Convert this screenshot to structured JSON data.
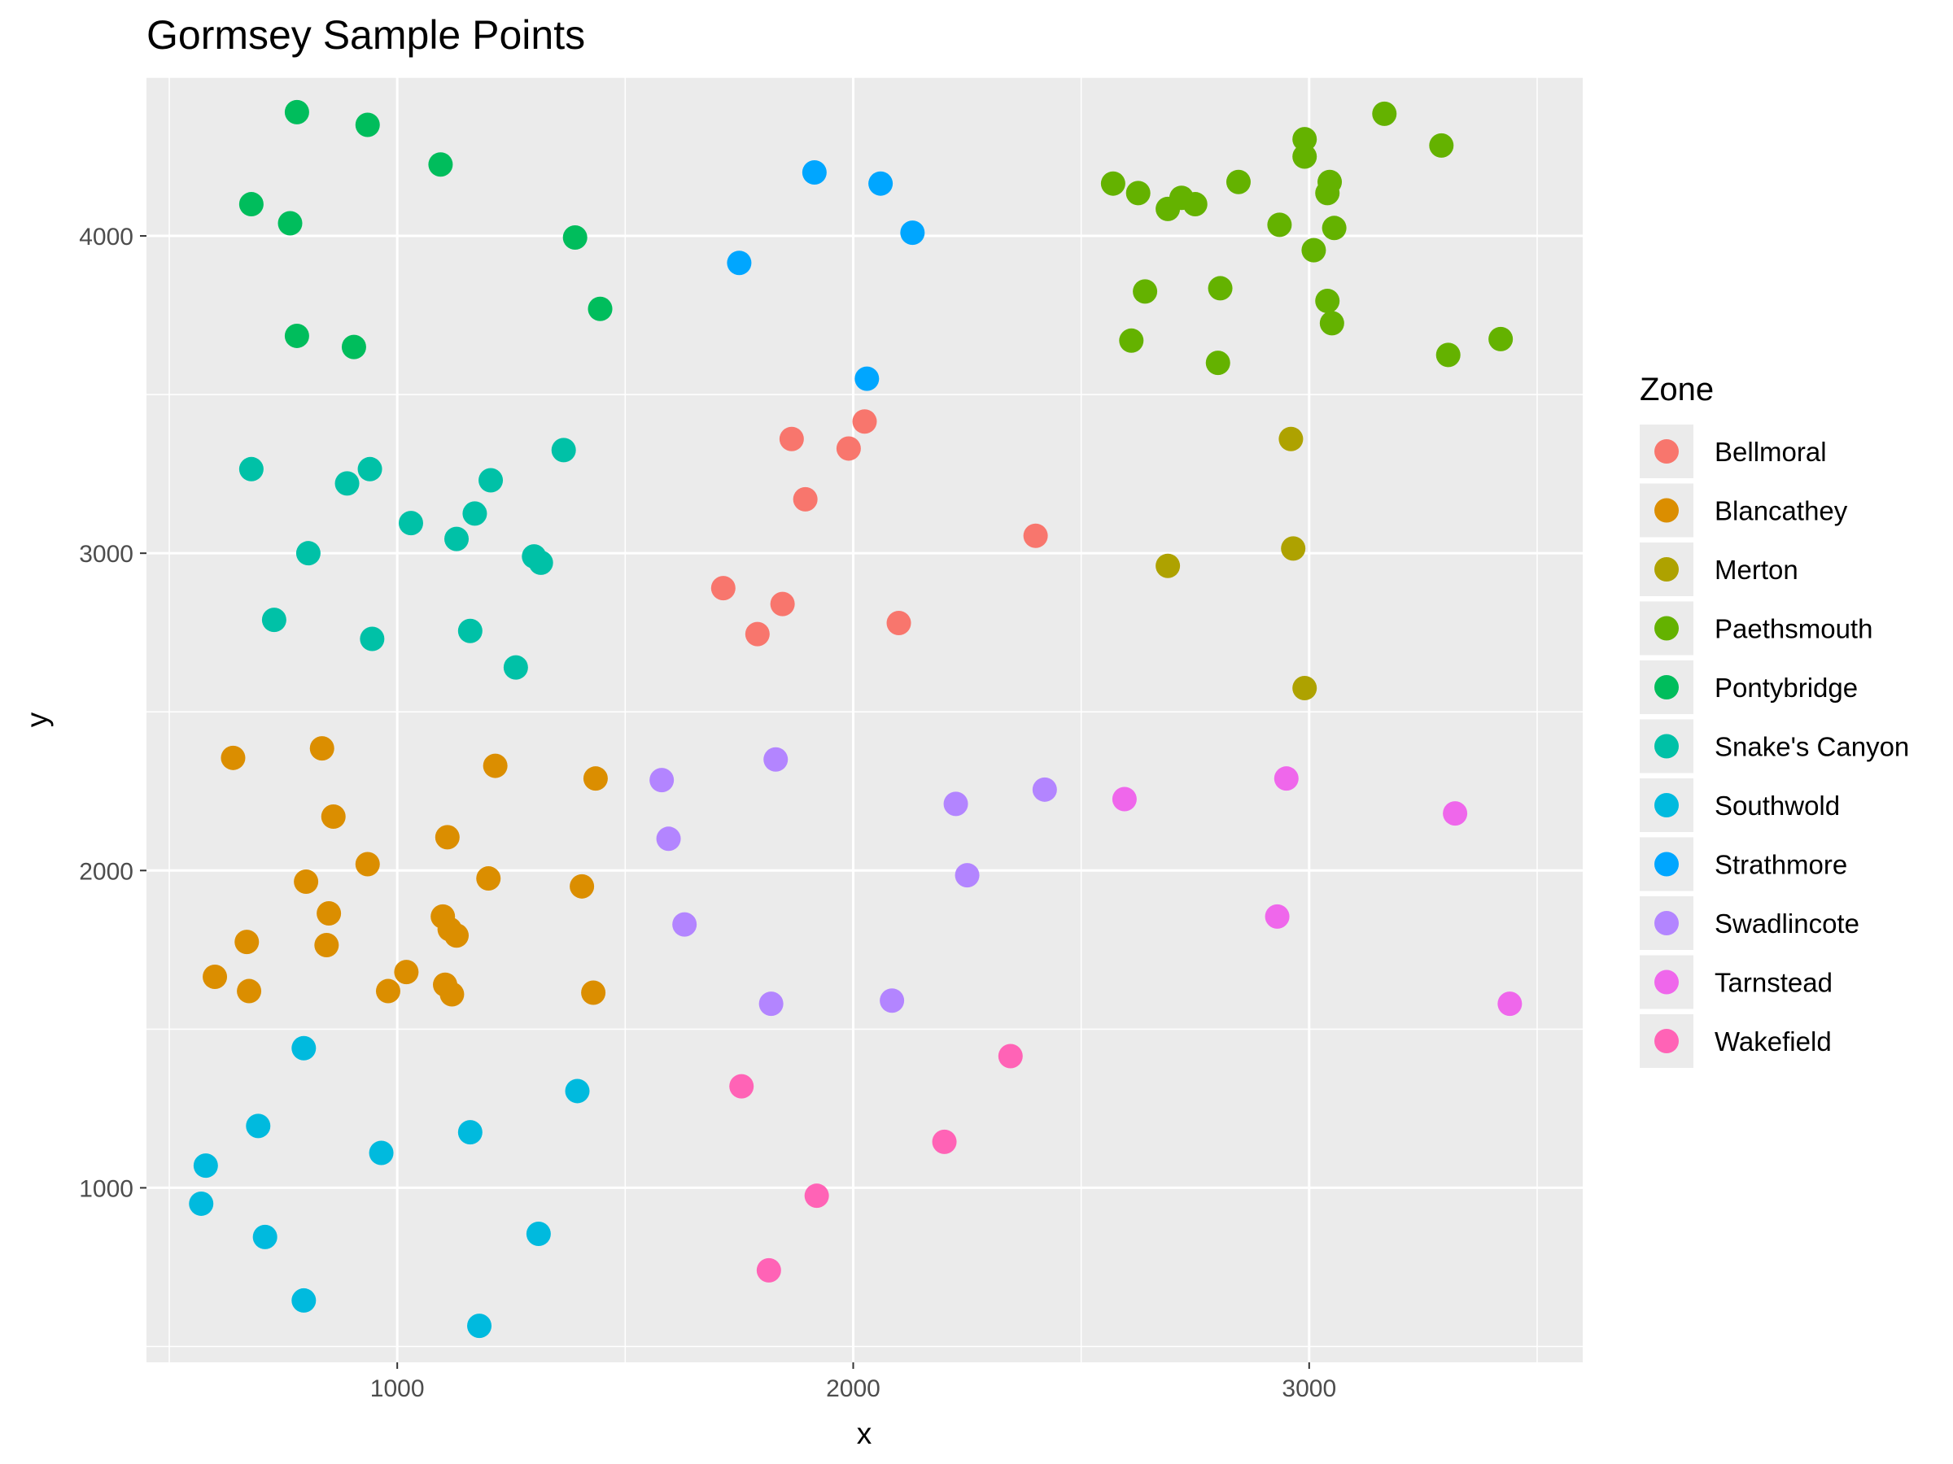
{
  "chart_data": {
    "type": "scatter",
    "title": "Gormsey Sample Points",
    "xlabel": "x",
    "ylabel": "y",
    "xlim": [
      450,
      3600
    ],
    "ylim": [
      450,
      4500
    ],
    "x_ticks": [
      1000,
      2000,
      3000
    ],
    "y_ticks": [
      1000,
      2000,
      3000,
      4000
    ],
    "x_tick_labels": [
      "1000",
      "2000",
      "3000"
    ],
    "y_tick_labels": [
      "1000",
      "2000",
      "3000",
      "4000"
    ],
    "grid": true,
    "legend": {
      "title": "Zone",
      "position": "right"
    },
    "series": [
      {
        "name": "Bellmoral",
        "color": "#F8766D",
        "points": [
          [
            2025,
            3415
          ],
          [
            1990,
            3330
          ],
          [
            1865,
            3360
          ],
          [
            1895,
            3170
          ],
          [
            2400,
            3055
          ],
          [
            1715,
            2890
          ],
          [
            1845,
            2840
          ],
          [
            1790,
            2745
          ],
          [
            2100,
            2780
          ]
        ]
      },
      {
        "name": "Blancathey",
        "color": "#DB8E00",
        "points": [
          [
            640,
            2355
          ],
          [
            835,
            2385
          ],
          [
            1215,
            2330
          ],
          [
            1435,
            2290
          ],
          [
            860,
            2170
          ],
          [
            1110,
            2105
          ],
          [
            935,
            2020
          ],
          [
            800,
            1965
          ],
          [
            1200,
            1975
          ],
          [
            1405,
            1950
          ],
          [
            850,
            1865
          ],
          [
            1100,
            1855
          ],
          [
            1115,
            1815
          ],
          [
            1130,
            1795
          ],
          [
            670,
            1775
          ],
          [
            845,
            1765
          ],
          [
            600,
            1665
          ],
          [
            1020,
            1680
          ],
          [
            980,
            1620
          ],
          [
            675,
            1620
          ],
          [
            1105,
            1640
          ],
          [
            1120,
            1610
          ],
          [
            1430,
            1615
          ]
        ]
      },
      {
        "name": "Merton",
        "color": "#AEA200",
        "points": [
          [
            2960,
            3360
          ],
          [
            2965,
            3015
          ],
          [
            2690,
            2960
          ],
          [
            2990,
            2575
          ]
        ]
      },
      {
        "name": "Paethsmouth",
        "color": "#64B200",
        "points": [
          [
            3165,
            4385
          ],
          [
            3290,
            4285
          ],
          [
            2990,
            4305
          ],
          [
            2990,
            4250
          ],
          [
            2570,
            4165
          ],
          [
            2625,
            4135
          ],
          [
            2845,
            4170
          ],
          [
            3045,
            4170
          ],
          [
            3040,
            4135
          ],
          [
            2720,
            4120
          ],
          [
            2750,
            4100
          ],
          [
            2690,
            4085
          ],
          [
            2935,
            4035
          ],
          [
            3055,
            4025
          ],
          [
            3010,
            3955
          ],
          [
            2640,
            3825
          ],
          [
            2805,
            3835
          ],
          [
            3040,
            3795
          ],
          [
            2610,
            3670
          ],
          [
            3050,
            3725
          ],
          [
            3420,
            3675
          ],
          [
            3305,
            3625
          ],
          [
            2800,
            3600
          ]
        ]
      },
      {
        "name": "Pontybridge",
        "color": "#00BD5C",
        "points": [
          [
            780,
            4390
          ],
          [
            935,
            4350
          ],
          [
            1095,
            4225
          ],
          [
            680,
            4100
          ],
          [
            765,
            4040
          ],
          [
            1390,
            3995
          ],
          [
            1445,
            3770
          ],
          [
            780,
            3685
          ],
          [
            905,
            3650
          ]
        ]
      },
      {
        "name": "Snake's Canyon",
        "color": "#00C1A7",
        "points": [
          [
            1365,
            3325
          ],
          [
            680,
            3265
          ],
          [
            940,
            3265
          ],
          [
            890,
            3220
          ],
          [
            1205,
            3230
          ],
          [
            1170,
            3125
          ],
          [
            1030,
            3095
          ],
          [
            1130,
            3045
          ],
          [
            805,
            3000
          ],
          [
            1300,
            2990
          ],
          [
            1315,
            2970
          ],
          [
            730,
            2790
          ],
          [
            1160,
            2755
          ],
          [
            945,
            2730
          ],
          [
            1260,
            2640
          ]
        ]
      },
      {
        "name": "Southwold",
        "color": "#00BADE",
        "points": [
          [
            795,
            1440
          ],
          [
            1395,
            1305
          ],
          [
            695,
            1195
          ],
          [
            1160,
            1175
          ],
          [
            965,
            1110
          ],
          [
            580,
            1070
          ],
          [
            570,
            950
          ],
          [
            710,
            845
          ],
          [
            1310,
            855
          ],
          [
            795,
            645
          ],
          [
            1180,
            565
          ]
        ]
      },
      {
        "name": "Strathmore",
        "color": "#00A6FF",
        "points": [
          [
            1915,
            4200
          ],
          [
            2060,
            4165
          ],
          [
            2130,
            4010
          ],
          [
            1750,
            3915
          ],
          [
            2030,
            3550
          ]
        ]
      },
      {
        "name": "Swadlincote",
        "color": "#B385FF",
        "points": [
          [
            1830,
            2350
          ],
          [
            1580,
            2285
          ],
          [
            2420,
            2255
          ],
          [
            2225,
            2210
          ],
          [
            1595,
            2100
          ],
          [
            2250,
            1985
          ],
          [
            1630,
            1830
          ],
          [
            1820,
            1580
          ],
          [
            2085,
            1590
          ]
        ]
      },
      {
        "name": "Tarnstead",
        "color": "#EF67EB",
        "points": [
          [
            2950,
            2290
          ],
          [
            2595,
            2225
          ],
          [
            3320,
            2180
          ],
          [
            2930,
            1855
          ],
          [
            3440,
            1580
          ]
        ]
      },
      {
        "name": "Wakefield",
        "color": "#FF63B6",
        "points": [
          [
            2345,
            1415
          ],
          [
            1755,
            1320
          ],
          [
            2200,
            1145
          ],
          [
            1920,
            975
          ],
          [
            1815,
            740
          ]
        ]
      }
    ]
  }
}
